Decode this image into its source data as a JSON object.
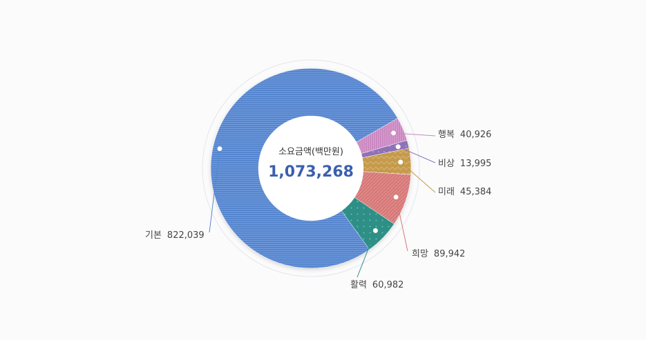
{
  "chart_data": {
    "type": "pie",
    "variant": "donut",
    "center_label": "소요금액(백만원)",
    "center_value": "1,073,268",
    "slices": [
      {
        "name": "기본",
        "value": 822039,
        "value_label": "822,039",
        "color": "#5585cf",
        "pattern": "hlines"
      },
      {
        "name": "행복",
        "value": 40926,
        "value_label": "40,926",
        "color": "#c987c0",
        "pattern": "vlines"
      },
      {
        "name": "비상",
        "value": 13995,
        "value_label": "13,995",
        "color": "#8e72b6",
        "pattern": "dots"
      },
      {
        "name": "미래",
        "value": 45384,
        "value_label": "45,384",
        "color": "#c49a4e",
        "pattern": "zigzag"
      },
      {
        "name": "희망",
        "value": 89942,
        "value_label": "89,942",
        "color": "#d67878",
        "pattern": "diag"
      },
      {
        "name": "활력",
        "value": 60982,
        "value_label": "60,982",
        "color": "#2e8f86",
        "pattern": "dots"
      }
    ]
  }
}
